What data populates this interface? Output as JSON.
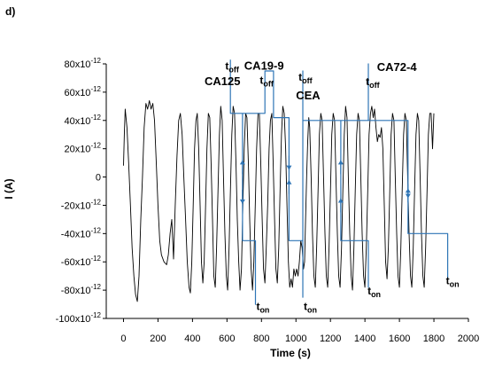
{
  "chart_data": {
    "type": "line",
    "panel_label": "d)",
    "xlabel": "Time (s)",
    "ylabel": "I (A)",
    "xlim": [
      -100,
      2000
    ],
    "ylim": [
      -1e-10,
      8e-11
    ],
    "x_ticks": [
      0,
      200,
      400,
      600,
      800,
      1000,
      1200,
      1400,
      1600,
      1800,
      2000
    ],
    "y_ticks": [
      {
        "value": 8e-11,
        "base": "80x10",
        "exp": "-12"
      },
      {
        "value": 6e-11,
        "base": "60x10",
        "exp": "-12"
      },
      {
        "value": 4e-11,
        "base": "40x10",
        "exp": "-12"
      },
      {
        "value": 2e-11,
        "base": "20x10",
        "exp": "-12"
      },
      {
        "value": 0,
        "base": "0",
        "exp": ""
      },
      {
        "value": -2e-11,
        "base": "-20x10",
        "exp": "-12"
      },
      {
        "value": -4e-11,
        "base": "-40x10",
        "exp": "-12"
      },
      {
        "value": -6e-11,
        "base": "-60x10",
        "exp": "-12"
      },
      {
        "value": -8e-11,
        "base": "-80x10",
        "exp": "-12"
      },
      {
        "value": -1e-10,
        "base": "-100x10",
        "exp": "-12"
      }
    ],
    "series": [
      {
        "color": "#000000",
        "points": [
          [
            0,
            8e-12
          ],
          [
            5,
            3e-11
          ],
          [
            10,
            4.8e-11
          ],
          [
            20,
            3.5e-11
          ],
          [
            30,
            1e-11
          ],
          [
            40,
            -2e-11
          ],
          [
            50,
            -5e-11
          ],
          [
            60,
            -7e-11
          ],
          [
            70,
            -8.3e-11
          ],
          [
            80,
            -8.8e-11
          ],
          [
            90,
            -7e-11
          ],
          [
            100,
            -3e-11
          ],
          [
            110,
            0
          ],
          [
            120,
            3.5e-11
          ],
          [
            130,
            5.2e-11
          ],
          [
            140,
            4.8e-11
          ],
          [
            150,
            5.4e-11
          ],
          [
            160,
            4.8e-11
          ],
          [
            170,
            5.2e-11
          ],
          [
            180,
            4e-11
          ],
          [
            190,
            1e-11
          ],
          [
            200,
            -2e-11
          ],
          [
            210,
            -4.5e-11
          ],
          [
            220,
            -5.5e-11
          ],
          [
            235,
            -6e-11
          ],
          [
            250,
            -6.2e-11
          ],
          [
            260,
            -5.5e-11
          ],
          [
            270,
            -4e-11
          ],
          [
            280,
            -3e-11
          ],
          [
            290,
            -5.8e-11
          ],
          [
            300,
            -2e-11
          ],
          [
            310,
            1.5e-11
          ],
          [
            320,
            4e-11
          ],
          [
            330,
            4.5e-11
          ],
          [
            340,
            3e-11
          ],
          [
            350,
            0
          ],
          [
            360,
            -3e-11
          ],
          [
            370,
            -6e-11
          ],
          [
            380,
            -7.8e-11
          ],
          [
            388,
            -8.2e-11
          ],
          [
            396,
            -6e-11
          ],
          [
            404,
            -2e-11
          ],
          [
            412,
            2e-11
          ],
          [
            420,
            4e-11
          ],
          [
            428,
            4.5e-11
          ],
          [
            436,
            2e-11
          ],
          [
            444,
            -2e-11
          ],
          [
            452,
            -6e-11
          ],
          [
            460,
            -7.5e-11
          ],
          [
            468,
            -6e-11
          ],
          [
            476,
            -2e-11
          ],
          [
            484,
            2e-11
          ],
          [
            492,
            4.5e-11
          ],
          [
            500,
            4.2e-11
          ],
          [
            508,
            1e-11
          ],
          [
            516,
            -3e-11
          ],
          [
            524,
            -7e-11
          ],
          [
            532,
            -7.8e-11
          ],
          [
            540,
            -5e-11
          ],
          [
            548,
            -1e-11
          ],
          [
            556,
            3e-11
          ],
          [
            564,
            5e-11
          ],
          [
            572,
            4e-11
          ],
          [
            580,
            0
          ],
          [
            588,
            -4e-11
          ],
          [
            596,
            -7e-11
          ],
          [
            604,
            -8e-11
          ],
          [
            612,
            -5e-11
          ],
          [
            620,
            -1e-11
          ],
          [
            628,
            3e-11
          ],
          [
            636,
            5e-11
          ],
          [
            644,
            4.5e-11
          ],
          [
            652,
            1e-11
          ],
          [
            660,
            -3e-11
          ],
          [
            668,
            -6e-11
          ],
          [
            676,
            -8e-11
          ],
          [
            684,
            -6.5e-11
          ],
          [
            692,
            -2e-11
          ],
          [
            700,
            2e-11
          ],
          [
            708,
            4.5e-11
          ],
          [
            716,
            4.2e-11
          ],
          [
            724,
            1e-11
          ],
          [
            732,
            -3e-11
          ],
          [
            740,
            -6.5e-11
          ],
          [
            748,
            -8e-11
          ],
          [
            756,
            -6e-11
          ],
          [
            764,
            -2e-11
          ],
          [
            772,
            2e-11
          ],
          [
            780,
            4.5e-11
          ],
          [
            788,
            4.5e-11
          ],
          [
            796,
            1e-11
          ],
          [
            804,
            -3e-11
          ],
          [
            812,
            -6.5e-11
          ],
          [
            820,
            -7.5e-11
          ],
          [
            828,
            -5e-11
          ],
          [
            836,
            -2e-11
          ],
          [
            844,
            2e-11
          ],
          [
            852,
            4e-11
          ],
          [
            860,
            4.5e-11
          ],
          [
            868,
            1e-11
          ],
          [
            876,
            -3e-11
          ],
          [
            884,
            -6.5e-11
          ],
          [
            892,
            -7.5e-11
          ],
          [
            900,
            -5e-11
          ],
          [
            908,
            -1e-11
          ],
          [
            916,
            3e-11
          ],
          [
            924,
            5e-11
          ],
          [
            932,
            4.5e-11
          ],
          [
            940,
            2e-11
          ],
          [
            948,
            -2e-11
          ],
          [
            956,
            -6e-11
          ],
          [
            964,
            -7.8e-11
          ],
          [
            972,
            -7.2e-11
          ],
          [
            980,
            -7.8e-11
          ],
          [
            988,
            -6.5e-11
          ],
          [
            996,
            -7e-11
          ],
          [
            1004,
            -6.5e-11
          ],
          [
            1012,
            -7e-11
          ],
          [
            1020,
            -6e-11
          ],
          [
            1028,
            -4.5e-11
          ],
          [
            1036,
            -5e-11
          ],
          [
            1044,
            -6.5e-11
          ],
          [
            1050,
            -6e-11
          ],
          [
            1056,
            -3e-11
          ],
          [
            1062,
            0
          ],
          [
            1068,
            2.5e-11
          ],
          [
            1074,
            4.2e-11
          ],
          [
            1080,
            3.5e-11
          ],
          [
            1088,
            0
          ],
          [
            1096,
            -4e-11
          ],
          [
            1104,
            -7e-11
          ],
          [
            1112,
            -7.8e-11
          ],
          [
            1120,
            -5e-11
          ],
          [
            1128,
            -1e-11
          ],
          [
            1136,
            3e-11
          ],
          [
            1144,
            4.5e-11
          ],
          [
            1152,
            4e-11
          ],
          [
            1160,
            0
          ],
          [
            1168,
            -4e-11
          ],
          [
            1176,
            -7e-11
          ],
          [
            1184,
            -7.8e-11
          ],
          [
            1192,
            -5e-11
          ],
          [
            1200,
            -1e-11
          ],
          [
            1208,
            3e-11
          ],
          [
            1216,
            4.5e-11
          ],
          [
            1224,
            4e-11
          ],
          [
            1232,
            0
          ],
          [
            1240,
            -4e-11
          ],
          [
            1248,
            -7e-11
          ],
          [
            1256,
            -7.8e-11
          ],
          [
            1264,
            -5e-11
          ],
          [
            1272,
            -1e-11
          ],
          [
            1280,
            3e-11
          ],
          [
            1288,
            5e-11
          ],
          [
            1296,
            4.2e-11
          ],
          [
            1304,
            0
          ],
          [
            1312,
            -4e-11
          ],
          [
            1320,
            -7e-11
          ],
          [
            1328,
            -8e-11
          ],
          [
            1336,
            -5e-11
          ],
          [
            1344,
            -1e-11
          ],
          [
            1352,
            3e-11
          ],
          [
            1360,
            4.5e-11
          ],
          [
            1368,
            4e-11
          ],
          [
            1376,
            0
          ],
          [
            1384,
            -4e-11
          ],
          [
            1392,
            -7e-11
          ],
          [
            1400,
            -7.8e-11
          ],
          [
            1408,
            -5e-11
          ],
          [
            1416,
            -1e-11
          ],
          [
            1424,
            3e-11
          ],
          [
            1432,
            4.5e-11
          ],
          [
            1440,
            5e-11
          ],
          [
            1448,
            4.2e-11
          ],
          [
            1456,
            4.8e-11
          ],
          [
            1464,
            3.5e-11
          ],
          [
            1472,
            2.5e-11
          ],
          [
            1480,
            3e-11
          ],
          [
            1488,
            2.8e-11
          ],
          [
            1496,
            3.5e-11
          ],
          [
            1504,
            2e-11
          ],
          [
            1512,
            -2e-11
          ],
          [
            1520,
            -6e-11
          ],
          [
            1528,
            -7.2e-11
          ],
          [
            1536,
            -5e-11
          ],
          [
            1544,
            -1e-11
          ],
          [
            1552,
            3e-11
          ],
          [
            1560,
            4.5e-11
          ],
          [
            1568,
            4e-11
          ],
          [
            1576,
            0
          ],
          [
            1584,
            -4e-11
          ],
          [
            1592,
            -7e-11
          ],
          [
            1600,
            -7.8e-11
          ],
          [
            1608,
            -5e-11
          ],
          [
            1616,
            -1e-11
          ],
          [
            1624,
            3e-11
          ],
          [
            1632,
            4.5e-11
          ],
          [
            1640,
            4e-11
          ],
          [
            1648,
            0
          ],
          [
            1656,
            -4e-11
          ],
          [
            1664,
            -7e-11
          ],
          [
            1672,
            -7.8e-11
          ],
          [
            1680,
            -5e-11
          ],
          [
            1688,
            -1e-11
          ],
          [
            1696,
            3e-11
          ],
          [
            1704,
            4.5e-11
          ],
          [
            1712,
            4e-11
          ],
          [
            1720,
            0
          ],
          [
            1728,
            -4e-11
          ],
          [
            1736,
            -7e-11
          ],
          [
            1744,
            -7.8e-11
          ],
          [
            1752,
            -5e-11
          ],
          [
            1760,
            -1e-11
          ],
          [
            1768,
            3e-11
          ],
          [
            1776,
            4.5e-11
          ],
          [
            1784,
            4.5e-11
          ],
          [
            1792,
            2e-11
          ],
          [
            1800,
            4.5e-11
          ]
        ]
      },
      {
        "color": "#2e75b6",
        "points": [
          [
            620,
            8.3e-11
          ],
          [
            620,
            4.5e-11
          ],
          [
            690,
            4.5e-11
          ],
          [
            690,
            -1.5e-11
          ],
          [
            690,
            -4.5e-11
          ],
          [
            765,
            -4.5e-11
          ],
          [
            765,
            -9e-11
          ],
          [
            765,
            -4.5e-11
          ],
          [
            690,
            -4.5e-11
          ],
          [
            690,
            4.5e-11
          ],
          [
            820,
            4.5e-11
          ],
          [
            820,
            7.5e-11
          ],
          [
            870,
            7.5e-11
          ],
          [
            870,
            4.2e-11
          ],
          [
            960,
            4.2e-11
          ],
          [
            960,
            -3e-11
          ],
          [
            960,
            -4.5e-11
          ],
          [
            1040,
            -4.5e-11
          ],
          [
            1040,
            -8.5e-11
          ],
          [
            1040,
            7.5e-11
          ],
          [
            1040,
            4e-11
          ],
          [
            1260,
            4e-11
          ],
          [
            1260,
            -4.5e-11
          ],
          [
            1420,
            -4.5e-11
          ],
          [
            1420,
            -7.8e-11
          ],
          [
            1420,
            -4.5e-11
          ],
          [
            1260,
            -4.5e-11
          ],
          [
            1260,
            4e-11
          ],
          [
            1420,
            4e-11
          ],
          [
            1420,
            8e-11
          ],
          [
            1420,
            4e-11
          ],
          [
            1650,
            4e-11
          ],
          [
            1650,
            -4e-11
          ],
          [
            1880,
            -4e-11
          ],
          [
            1880,
            -7.2e-11
          ]
        ]
      }
    ],
    "annotations": [
      {
        "main": "CA125",
        "sub": "",
        "x": 470,
        "y": 6.5e-11,
        "size": 13
      },
      {
        "main": "t",
        "sub": "off",
        "x": 590,
        "y": 7.6e-11,
        "size": 12
      },
      {
        "main": "CA19-9",
        "sub": "",
        "x": 700,
        "y": 7.6e-11,
        "size": 13
      },
      {
        "main": "t",
        "sub": "off",
        "x": 790,
        "y": 6.6e-11,
        "size": 12
      },
      {
        "main": "t",
        "sub": "off",
        "x": 1015,
        "y": 6.8e-11,
        "size": 12
      },
      {
        "main": "CEA",
        "sub": "",
        "x": 1000,
        "y": 5.5e-11,
        "size": 13
      },
      {
        "main": "CA72-4",
        "sub": "",
        "x": 1470,
        "y": 7.5e-11,
        "size": 13
      },
      {
        "main": "t",
        "sub": "off",
        "x": 1405,
        "y": 6.5e-11,
        "size": 12
      },
      {
        "main": "t",
        "sub": "on",
        "x": 770,
        "y": -9.4e-11,
        "size": 12
      },
      {
        "main": "t",
        "sub": "on",
        "x": 1045,
        "y": -9.4e-11,
        "size": 12
      },
      {
        "main": "t",
        "sub": "on",
        "x": 1415,
        "y": -8.3e-11,
        "size": 12
      },
      {
        "main": "t",
        "sub": "on",
        "x": 1870,
        "y": -7.6e-11,
        "size": 12
      }
    ],
    "arrows": [
      {
        "x": 690,
        "from": 2e-12,
        "to": 1.2e-11
      },
      {
        "x": 690,
        "from": -9e-12,
        "to": -1.9e-11
      },
      {
        "x": 960,
        "from": 1.5e-11,
        "to": 5e-12
      },
      {
        "x": 960,
        "from": -1.2e-11,
        "to": -2e-12
      },
      {
        "x": 1260,
        "from": 2e-12,
        "to": 1.2e-11
      },
      {
        "x": 1260,
        "from": -2.5e-11,
        "to": -1.5e-11
      },
      {
        "x": 1650,
        "from": -5e-12,
        "to": -1.5e-11
      },
      {
        "x": 1650,
        "from": -1.8e-11,
        "to": -8e-12
      }
    ]
  }
}
